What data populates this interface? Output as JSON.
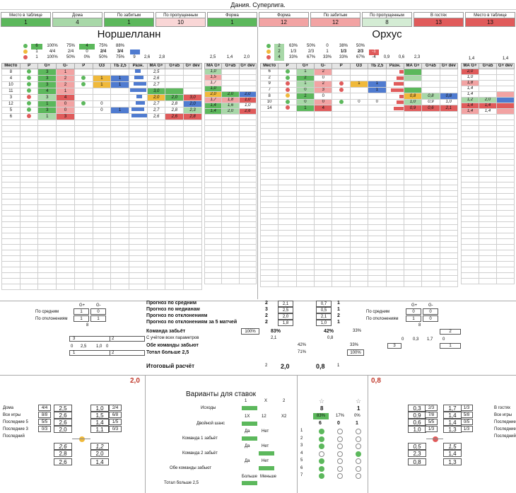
{
  "title": "Дания. Суперлига.",
  "top": [
    {
      "label": "Место в таблице",
      "value": "1",
      "color": "#5cb85c"
    },
    {
      "label": "Дома",
      "value": "4",
      "color": "#a8d8a8"
    },
    {
      "label": "По забитым",
      "value": "1",
      "color": "#5cb85c"
    },
    {
      "label": "По пропущенным",
      "value": "10",
      "color": "#f9d6d6"
    },
    {
      "label": "Форма",
      "value": "1",
      "color": "#5cb85c"
    },
    {
      "label": "Форма",
      "value": "12",
      "color": "#f2a3a3"
    },
    {
      "label": "По забитым",
      "value": "12",
      "color": "#f2a3a3"
    },
    {
      "label": "По пропущенным",
      "value": "8",
      "color": "#d4ecd4"
    },
    {
      "label": "В гостях",
      "value": "13",
      "color": "#e05b5b"
    },
    {
      "label": "Место в таблице",
      "value": "13",
      "color": "#e05b5b"
    }
  ],
  "team_home": "Норшелланн",
  "team_away": "Орхус",
  "home_summary": [
    [
      "6",
      "100%",
      "75%",
      "4",
      "75%",
      "88%"
    ],
    [
      "1",
      "4/4",
      "2/4",
      "0",
      "2/4",
      "3/4"
    ],
    [
      "1",
      "100%",
      "50%",
      "0%",
      "50%",
      "75%"
    ]
  ],
  "home_summary_tail": [
    "9",
    "2,6",
    "2,8"
  ],
  "away_summary": [
    [
      "2",
      "63%",
      "50%",
      "0",
      "38%",
      "50%"
    ],
    [
      "2",
      "1/3",
      "2/3",
      "1",
      "1/3",
      "2/3"
    ],
    [
      "4",
      "33%",
      "67%",
      "33%",
      "33%",
      "67%"
    ]
  ],
  "away_summary_tail": [
    "-4",
    "0,9",
    "0,6",
    "2,3"
  ],
  "away_small_tail": [
    "-1"
  ],
  "right_summary": [
    "1,4",
    "1,4"
  ],
  "left_extra": [
    "2,5",
    "1,4",
    "2,0"
  ],
  "grid_headers": [
    "Место",
    "Р",
    "G+",
    "G-",
    "Р",
    "ОЗ",
    "ТБ 2,5",
    "Разн.",
    "МА G+",
    "G+a5",
    "G+ dev"
  ],
  "home_rows": [
    [
      "8",
      "3",
      "1",
      "",
      "",
      "",
      "2,5",
      "",
      "",
      ""
    ],
    [
      "4",
      "3",
      "2",
      "1",
      "1",
      "",
      "2,6",
      "",
      "",
      ""
    ],
    [
      "10",
      "3",
      "2",
      "1",
      "1",
      "",
      "2,7",
      "",
      "",
      ""
    ],
    [
      "11",
      "4",
      "1",
      "",
      "",
      "",
      "3,0",
      "",
      "",
      ""
    ],
    [
      "3",
      "3",
      "4",
      "",
      "",
      "",
      "2,0",
      "2,0",
      "3,0",
      ""
    ],
    [
      "12",
      "1",
      "0",
      "0",
      "0",
      "",
      "2,7",
      "2,8",
      "2,0",
      ""
    ],
    [
      "5",
      "3",
      "0",
      "0",
      "1",
      "",
      "2,7",
      "2,8",
      "2,3",
      ""
    ],
    [
      "6",
      "1",
      "3",
      "",
      "",
      "",
      "2,6",
      "2,6",
      "2,8",
      ""
    ]
  ],
  "home_side": [
    "1,0",
    "1,5",
    "1,7",
    "1,0",
    "2,0",
    "1,7",
    "1,4",
    "1,4"
  ],
  "home_side2": [
    "",
    "",
    "",
    "",
    "2,0",
    "1,8",
    "1,6",
    "2,0"
  ],
  "home_side3": [
    "",
    "",
    "",
    "",
    "2,0",
    "1,0",
    "1,0",
    "2,6"
  ],
  "away_rows": [
    [
      "6",
      "1",
      "2",
      "",
      "",
      "",
      "",
      "",
      "",
      ""
    ],
    [
      "2",
      "2",
      "0",
      "",
      "",
      "",
      "",
      "",
      "",
      ""
    ],
    [
      "9",
      "1",
      "2",
      "1",
      "1",
      "",
      "",
      "",
      "",
      ""
    ],
    [
      "7",
      "0",
      "3",
      "0",
      "1",
      "",
      "",
      "",
      "",
      ""
    ],
    [
      "8",
      "2",
      "0",
      "",
      "",
      "",
      "0,8",
      "0,8",
      "0,8",
      ""
    ],
    [
      "10",
      "0",
      "0",
      "0",
      "0",
      "",
      "1,0",
      "0,9",
      "1,0",
      ""
    ],
    [
      "14",
      "1",
      "4",
      "",
      "",
      "",
      "0,9",
      "0,6",
      "2,1",
      ""
    ],
    [
      "",
      "",
      "",
      "",
      "",
      "",
      "0,9",
      "0,6",
      "2,3",
      ""
    ]
  ],
  "away_side": [
    "2,0",
    "1,0",
    "1,8",
    "1,4",
    "1,4",
    "1,2",
    "1,4",
    "1,4"
  ],
  "away_side2": [
    "",
    "",
    "",
    "",
    "",
    "2,0",
    "1,4",
    "1,4"
  ],
  "right_col": [
    "2,0",
    "1,5",
    "1,3"
  ],
  "forecast": {
    "rows": [
      {
        "label": "Прогноз по средним",
        "a": "2",
        "b": "2,1",
        "c": "0,7",
        "d": "1"
      },
      {
        "label": "Прогноз по медианам",
        "a": "3",
        "b": "2,5",
        "c": "0,5",
        "d": "1"
      },
      {
        "label": "Прогноз по отклонениям",
        "a": "2",
        "b": "2,0",
        "c": "2,1",
        "d": "2"
      },
      {
        "label": "Прогноз по отклонениям за 5 матчей",
        "a": "2",
        "b": "1,8",
        "c": "1,0",
        "d": "1"
      }
    ],
    "score_label": "Команда забьёт",
    "score_a": "100%",
    "score_b": "83%",
    "score_c": "42%",
    "score_d": "33%",
    "with_params": "С учётом всех параметров",
    "with_a": "2,1",
    "with_b": "0,8",
    "both_label": "Обе команды забьют",
    "both_a": "42%",
    "both_b": "33%",
    "total_label": "Тотал больше 2,5",
    "total_a": "71%",
    "total_b": "100%",
    "final_label": "Итоговый расчёт",
    "final": [
      "2",
      "2,0",
      "0,8",
      "1"
    ]
  },
  "left_mini": {
    "h1": "G+",
    "h2": "G-",
    "r1": "По средним",
    "r1a": "1",
    "r1b": "0",
    "r2": "По отклонениям",
    "r2a": "1",
    "r2b": "1",
    "sum": "8",
    "v1": "3",
    "v2": "2",
    "v3": "0",
    "v4": "2,5",
    "v5": "1,0",
    "v6": "0",
    "v7": "1",
    "v8": "2"
  },
  "right_mini": {
    "h1": "G+",
    "h2": "G-",
    "r1": "По средним",
    "r1a": "0",
    "r1b": "0",
    "r2": "По отклонениям",
    "r2a": "1",
    "r2b": "0",
    "sum": "8",
    "v1": "2",
    "v2": "0",
    "v3": "0,3",
    "v4": "1,7",
    "v5": "0",
    "v6": "3",
    "v7": "1"
  },
  "bets_title": "Варианты для ставок",
  "home_score": "2,0",
  "away_score": "0,8",
  "bets": {
    "outcome": "Исходы",
    "o1": "1",
    "ox": "X",
    "o2": "2",
    "double": "Двойной шанс",
    "d1": "1X",
    "d2": "12",
    "d3": "X2",
    "t1": "Команда 1 забьёт",
    "t2": "Команда 2 забьёт",
    "yes": "Да",
    "no": "Нет",
    "both": "Обе команды забьют",
    "total": "Тотал больше 2,5",
    "more": "Больше",
    "less": "Меньше",
    "stars": [
      "8",
      "1"
    ],
    "pct": [
      "83%",
      "17%",
      "0%"
    ],
    "cnt": [
      "6",
      "0",
      "1"
    ],
    "nums": [
      "1",
      "2",
      "3",
      "4",
      "5",
      "6",
      "7"
    ]
  },
  "left_panel": {
    "labels": [
      "Дома",
      "Все игры",
      "Последние 5",
      "Последние 3",
      "Последний"
    ],
    "fr": [
      "4/4",
      "8/8",
      "5/5",
      "0/3"
    ],
    "v1": [
      "2,5",
      "2,6",
      "2,6",
      "2,0",
      "2,6",
      "2,8",
      "2,6"
    ],
    "v2": [
      "1,0",
      "1,5",
      "1,4",
      "1,1",
      "1,2",
      "2,0",
      "1,4"
    ],
    "fr2": [
      "2/4",
      "6/8",
      "1/5",
      "0/3"
    ]
  },
  "right_panel": {
    "labels": [
      "В гостях",
      "Все игры",
      "Последние 5",
      "Последние 3",
      "Последний"
    ],
    "fr": [
      "1/3",
      "5/8",
      "0/5",
      "1/3"
    ],
    "v1": [
      "0,3",
      "0,9",
      "0,6",
      "1,0",
      "0,5",
      "2,3",
      "0,8"
    ],
    "v2": [
      "1,7",
      "1,4",
      "1,4",
      "1,3",
      "1,5",
      "1,4",
      "1,3"
    ],
    "fr2": [
      "2/3",
      "7/8",
      "5/5",
      "1/3"
    ]
  }
}
